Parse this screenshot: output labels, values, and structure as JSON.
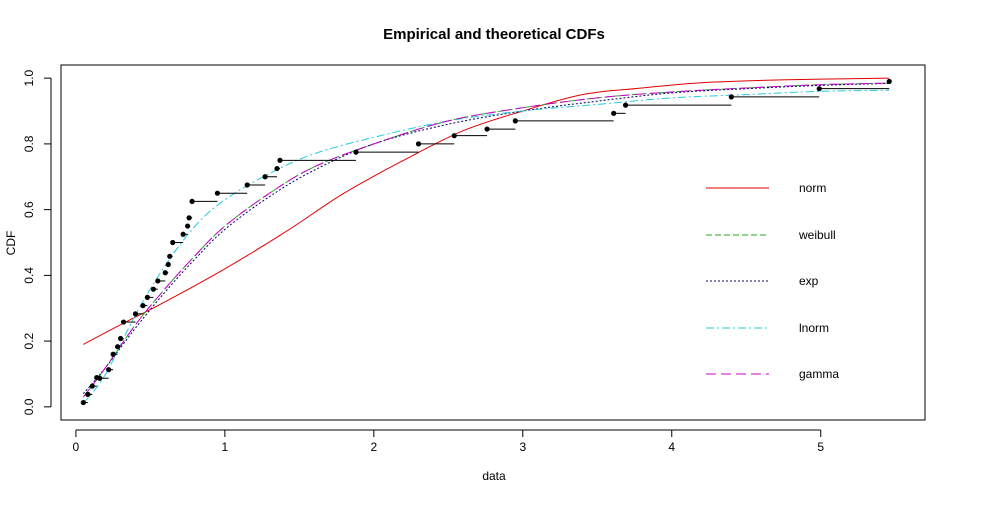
{
  "chart_data": {
    "type": "line",
    "title": "Empirical and theoretical CDFs",
    "xlabel": "data",
    "ylabel": "CDF",
    "xlim": [
      -0.1,
      5.7
    ],
    "ylim": [
      -0.04,
      1.04
    ],
    "xticks": [
      0,
      1,
      2,
      3,
      4,
      5
    ],
    "yticks": [
      0.0,
      0.2,
      0.4,
      0.6,
      0.8,
      1.0
    ],
    "xtick_labels": [
      "0",
      "1",
      "2",
      "3",
      "4",
      "5"
    ],
    "ytick_labels": [
      "0.0",
      "0.2",
      "0.4",
      "0.6",
      "0.8",
      "1.0"
    ],
    "grid": false,
    "legend_position": "right",
    "empirical": {
      "x": [
        0.05,
        0.08,
        0.11,
        0.14,
        0.16,
        0.22,
        0.25,
        0.28,
        0.3,
        0.32,
        0.4,
        0.45,
        0.48,
        0.52,
        0.55,
        0.6,
        0.62,
        0.63,
        0.65,
        0.72,
        0.75,
        0.76,
        0.78,
        0.95,
        1.15,
        1.27,
        1.35,
        1.37,
        1.88,
        2.3,
        2.54,
        2.76,
        2.95,
        3.61,
        3.69,
        4.4,
        4.99,
        5.46
      ],
      "y": [
        0.013,
        0.038,
        0.063,
        0.089,
        0.087,
        0.113,
        0.16,
        0.183,
        0.208,
        0.258,
        0.283,
        0.308,
        0.333,
        0.358,
        0.383,
        0.408,
        0.433,
        0.458,
        0.5,
        0.525,
        0.55,
        0.575,
        0.625,
        0.65,
        0.675,
        0.7,
        0.725,
        0.75,
        0.775,
        0.8,
        0.825,
        0.845,
        0.87,
        0.893,
        0.918,
        0.943,
        0.968,
        0.99
      ]
    },
    "series": [
      {
        "name": "norm",
        "color": "#e00000",
        "dash": "",
        "x": [
          0.05,
          0.3,
          0.6,
          1.0,
          1.4,
          1.8,
          2.2,
          2.6,
          3.0,
          3.4,
          3.8,
          4.2,
          4.6,
          5.0,
          5.46
        ],
        "y": [
          0.19,
          0.25,
          0.32,
          0.42,
          0.53,
          0.65,
          0.75,
          0.84,
          0.9,
          0.95,
          0.97,
          0.986,
          0.993,
          0.997,
          1.0
        ]
      },
      {
        "name": "weibull",
        "color": "#22aa22",
        "dash": "6,3",
        "x": [
          0.05,
          0.2,
          0.4,
          0.6,
          0.8,
          1.0,
          1.3,
          1.6,
          2.0,
          2.5,
          3.0,
          3.5,
          4.0,
          4.5,
          5.0,
          5.46
        ],
        "y": [
          0.03,
          0.12,
          0.25,
          0.36,
          0.46,
          0.55,
          0.65,
          0.73,
          0.8,
          0.87,
          0.91,
          0.94,
          0.958,
          0.97,
          0.98,
          0.985
        ]
      },
      {
        "name": "exp",
        "color": "#000066",
        "dash": "2,2",
        "x": [
          0.05,
          0.2,
          0.4,
          0.6,
          0.8,
          1.0,
          1.3,
          1.6,
          2.0,
          2.5,
          3.0,
          3.5,
          4.0,
          4.5,
          5.0,
          5.46
        ],
        "y": [
          0.04,
          0.12,
          0.24,
          0.35,
          0.45,
          0.54,
          0.64,
          0.72,
          0.8,
          0.86,
          0.9,
          0.93,
          0.955,
          0.968,
          0.978,
          0.984
        ]
      },
      {
        "name": "lnorm",
        "color": "#22ccdd",
        "dash": "8,3,2,3",
        "x": [
          0.05,
          0.2,
          0.4,
          0.6,
          0.8,
          1.0,
          1.3,
          1.6,
          2.0,
          2.5,
          3.0,
          3.5,
          4.0,
          4.5,
          5.0,
          5.46
        ],
        "y": [
          0.01,
          0.1,
          0.28,
          0.43,
          0.55,
          0.63,
          0.71,
          0.77,
          0.82,
          0.87,
          0.9,
          0.92,
          0.94,
          0.95,
          0.96,
          0.963
        ]
      },
      {
        "name": "gamma",
        "color": "#cc00cc",
        "dash": "10,5",
        "x": [
          0.05,
          0.2,
          0.4,
          0.6,
          0.8,
          1.0,
          1.3,
          1.6,
          2.0,
          2.5,
          3.0,
          3.5,
          4.0,
          4.5,
          5.0,
          5.46
        ],
        "y": [
          0.03,
          0.12,
          0.25,
          0.36,
          0.46,
          0.55,
          0.65,
          0.73,
          0.8,
          0.87,
          0.91,
          0.94,
          0.958,
          0.97,
          0.98,
          0.985
        ]
      }
    ]
  }
}
